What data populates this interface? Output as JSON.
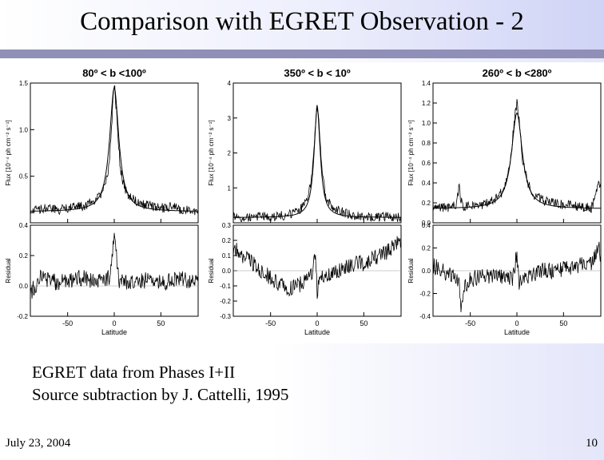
{
  "slide": {
    "title": "Comparison with EGRET Observation - 2",
    "notes": [
      "EGRET data from Phases I+II",
      "Source subtraction by J. Cattelli, 1995"
    ],
    "footer_date": "July 23, 2004",
    "page_number": "10"
  },
  "chart_data": [
    {
      "type": "line",
      "title": "80º < b <100º",
      "xlabel": "Latitude",
      "xlim": [
        -90,
        90
      ],
      "xticks": [
        -50,
        0,
        50
      ],
      "flux": {
        "ylabel": "Flux  [10⁻⁴ ph cm⁻² s⁻¹]",
        "ylim": [
          0,
          1.5
        ],
        "yticks": [
          0.5,
          1.0,
          1.5
        ],
        "ytick_labels": [
          "0.5",
          "1.0",
          "1.5"
        ],
        "model": {
          "peak": 1.45,
          "baseline": 0.12,
          "width": 6
        },
        "series": [
          {
            "x": [
              -90,
              -80,
              -70,
              -60,
              -50,
              -40,
              -30,
              -20,
              -15,
              -10,
              -8,
              -6,
              -4,
              -2,
              0,
              2,
              4,
              6,
              8,
              10,
              15,
              20,
              30,
              40,
              50,
              60,
              70,
              80,
              90
            ],
            "y": [
              0.12,
              0.15,
              0.16,
              0.14,
              0.16,
              0.17,
              0.19,
              0.24,
              0.3,
              0.38,
              0.47,
              0.6,
              0.85,
              1.2,
              1.5,
              1.25,
              0.95,
              0.65,
              0.5,
              0.4,
              0.3,
              0.25,
              0.2,
              0.18,
              0.16,
              0.17,
              0.15,
              0.14,
              0.13
            ]
          }
        ]
      },
      "residual": {
        "ylabel": "Residual",
        "ylim": [
          -0.2,
          0.4
        ],
        "yticks": [
          -0.2,
          0.0,
          0.2,
          0.4
        ],
        "ytick_labels": [
          "-0.2",
          "0.0",
          "0.2",
          "0.4"
        ],
        "series": [
          {
            "x": [
              -90,
              -80,
              -70,
              -60,
              -50,
              -40,
              -30,
              -20,
              -10,
              -5,
              -2,
              0,
              2,
              4,
              6,
              10,
              20,
              30,
              40,
              50,
              60,
              70,
              80,
              90
            ],
            "y": [
              -0.05,
              0.05,
              0.04,
              0.02,
              0.03,
              0.05,
              0.05,
              0.03,
              0.05,
              0.05,
              0.2,
              0.35,
              0.22,
              0.08,
              0.02,
              0.03,
              0.02,
              0.03,
              0.05,
              0.02,
              0.03,
              0.05,
              0.03,
              0.04
            ]
          }
        ]
      }
    },
    {
      "type": "line",
      "title": "350º < b < 10º",
      "xlabel": "Latitude",
      "xlim": [
        -90,
        90
      ],
      "xticks": [
        -50,
        0,
        50
      ],
      "flux": {
        "ylabel": "Flux  [10⁻⁴ ph cm⁻² s⁻¹]",
        "ylim": [
          0,
          4
        ],
        "yticks": [
          1,
          2,
          3,
          4
        ],
        "ytick_labels": [
          "1",
          "2",
          "3",
          "4"
        ],
        "model": {
          "peak": 3.3,
          "baseline": 0.15,
          "width": 4
        },
        "series": [
          {
            "x": [
              -90,
              -80,
              -70,
              -60,
              -50,
              -40,
              -30,
              -20,
              -15,
              -10,
              -8,
              -6,
              -4,
              -2,
              0,
              2,
              4,
              6,
              8,
              10,
              15,
              20,
              30,
              40,
              50,
              60,
              70,
              80,
              90
            ],
            "y": [
              0.15,
              0.12,
              0.14,
              0.16,
              0.18,
              0.2,
              0.24,
              0.35,
              0.5,
              0.75,
              0.95,
              1.3,
              1.9,
              2.8,
              3.5,
              2.9,
              1.95,
              1.3,
              0.95,
              0.75,
              0.5,
              0.38,
              0.28,
              0.22,
              0.2,
              0.18,
              0.17,
              0.16,
              0.15
            ]
          }
        ]
      },
      "residual": {
        "ylabel": "Residual",
        "ylim": [
          -0.3,
          0.3
        ],
        "yticks": [
          -0.3,
          -0.2,
          -0.1,
          0.0,
          0.1,
          0.2,
          0.3
        ],
        "ytick_labels": [
          "-0.3",
          "-0.2",
          "-0.1",
          "0.0",
          "0.1",
          "0.2",
          "0.3"
        ],
        "series": [
          {
            "x": [
              -90,
              -80,
              -70,
              -60,
              -50,
              -40,
              -30,
              -20,
              -10,
              -5,
              -2,
              0,
              2,
              5,
              10,
              20,
              30,
              40,
              50,
              60,
              70,
              80,
              90
            ],
            "y": [
              0.15,
              0.1,
              0.05,
              0.0,
              -0.05,
              -0.1,
              -0.12,
              -0.1,
              -0.05,
              0.0,
              0.1,
              -0.15,
              -0.05,
              -0.05,
              -0.02,
              0.0,
              0.02,
              0.05,
              0.05,
              0.08,
              0.1,
              0.15,
              0.2
            ]
          }
        ]
      }
    },
    {
      "type": "line",
      "title": "260º < b <280º",
      "xlabel": "Latitude",
      "xlim": [
        -90,
        90
      ],
      "xticks": [
        -50,
        0,
        50
      ],
      "flux": {
        "ylabel": "Flux  [10⁻⁴ ph cm⁻² s⁻¹]",
        "ylim": [
          0,
          1.4
        ],
        "yticks": [
          0.0,
          0.2,
          0.4,
          0.6,
          0.8,
          1.0,
          1.2,
          1.4
        ],
        "ytick_labels": [
          "0.0",
          "0.2",
          "0.4",
          "0.6",
          "0.8",
          "1.0",
          "1.2",
          "1.4"
        ],
        "model": {
          "peak": 1.1,
          "baseline": 0.14,
          "width": 7
        },
        "series": [
          {
            "x": [
              -90,
              -80,
              -70,
              -65,
              -62,
              -60,
              -57,
              -50,
              -40,
              -30,
              -20,
              -15,
              -10,
              -8,
              -6,
              -4,
              -2,
              0,
              2,
              4,
              6,
              8,
              10,
              15,
              20,
              30,
              40,
              50,
              60,
              70,
              80,
              88,
              90
            ],
            "y": [
              0.18,
              0.16,
              0.15,
              0.18,
              0.38,
              0.22,
              0.17,
              0.17,
              0.18,
              0.2,
              0.26,
              0.32,
              0.45,
              0.55,
              0.7,
              0.9,
              1.1,
              1.2,
              1.05,
              0.85,
              0.65,
              0.55,
              0.45,
              0.32,
              0.27,
              0.22,
              0.2,
              0.18,
              0.17,
              0.16,
              0.15,
              0.4,
              0.35
            ]
          }
        ]
      },
      "residual": {
        "ylabel": "Residual",
        "ylim": [
          -0.4,
          0.4
        ],
        "yticks": [
          -0.4,
          -0.2,
          0.0,
          0.2,
          0.4
        ],
        "ytick_labels": [
          "-0.4",
          "-0.2",
          "0.0",
          "0.2",
          "0.4"
        ],
        "series": [
          {
            "x": [
              -90,
              -80,
              -70,
              -62,
              -60,
              -57,
              -50,
              -40,
              -30,
              -20,
              -10,
              -5,
              -2,
              0,
              2,
              5,
              10,
              20,
              30,
              40,
              50,
              60,
              70,
              80,
              88,
              90
            ],
            "y": [
              0.05,
              0.0,
              -0.05,
              -0.1,
              -0.35,
              -0.15,
              -0.08,
              -0.05,
              -0.05,
              -0.05,
              -0.05,
              -0.08,
              0.05,
              0.18,
              -0.1,
              -0.08,
              -0.05,
              -0.02,
              0.0,
              0.0,
              0.02,
              0.03,
              0.05,
              0.05,
              0.2,
              0.1
            ]
          }
        ]
      }
    }
  ]
}
